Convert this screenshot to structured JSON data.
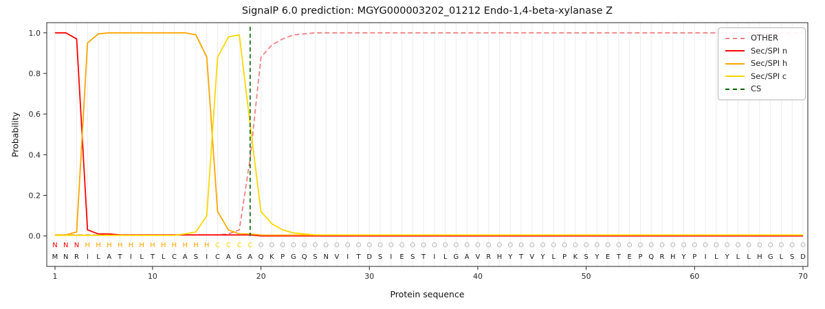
{
  "title": "SignalP 6.0 prediction: MGYG000003202_01212 Endo-1,4-beta-xylanase Z",
  "chart_data": {
    "type": "line",
    "title": "SignalP 6.0 prediction: MGYG000003202_01212 Endo-1,4-beta-xylanase Z",
    "xlabel": "Protein sequence",
    "ylabel": "Probability",
    "x_range": [
      1,
      70
    ],
    "ylim": [
      -0.15,
      1.05
    ],
    "x_ticks": [
      1,
      10,
      20,
      30,
      40,
      50,
      60,
      70
    ],
    "y_ticks": [
      0.0,
      0.2,
      0.4,
      0.6,
      0.8,
      1.0
    ],
    "grid": true,
    "grid_color": "#ececec",
    "axis_color": "#262626",
    "background": "#ffffff",
    "legend_position": "upper right",
    "series": [
      {
        "name": "OTHER",
        "color": "#f08080",
        "style": "dashed",
        "values": [
          0.005,
          0.005,
          0.005,
          0.005,
          0.005,
          0.005,
          0.005,
          0.005,
          0.005,
          0.005,
          0.005,
          0.005,
          0.005,
          0.005,
          0.005,
          0.005,
          0.01,
          0.03,
          0.38,
          0.88,
          0.94,
          0.97,
          0.99,
          0.995,
          1.0,
          1.0,
          1.0,
          1.0,
          1.0,
          1.0,
          1.0,
          1.0,
          1.0,
          1.0,
          1.0,
          1.0,
          1.0,
          1.0,
          1.0,
          1.0,
          1.0,
          1.0,
          1.0,
          1.0,
          1.0,
          1.0,
          1.0,
          1.0,
          1.0,
          1.0,
          1.0,
          1.0,
          1.0,
          1.0,
          1.0,
          1.0,
          1.0,
          1.0,
          1.0,
          1.0,
          1.0,
          1.0,
          1.0,
          1.0,
          1.0,
          1.0,
          1.0,
          1.0,
          1.0,
          1.0
        ]
      },
      {
        "name": "Sec/SPI n",
        "color": "#ff0000",
        "style": "solid",
        "values": [
          1.0,
          1.0,
          0.97,
          0.03,
          0.01,
          0.01,
          0.005,
          0.005,
          0.005,
          0.005,
          0.005,
          0.005,
          0.005,
          0.005,
          0.005,
          0.005,
          0.005,
          0.005,
          0.005,
          0.0,
          0.0,
          0.0,
          0.0,
          0.0,
          0.0,
          0.0,
          0.0,
          0.0,
          0.0,
          0.0,
          0.0,
          0.0,
          0.0,
          0.0,
          0.0,
          0.0,
          0.0,
          0.0,
          0.0,
          0.0,
          0.0,
          0.0,
          0.0,
          0.0,
          0.0,
          0.0,
          0.0,
          0.0,
          0.0,
          0.0,
          0.0,
          0.0,
          0.0,
          0.0,
          0.0,
          0.0,
          0.0,
          0.0,
          0.0,
          0.0,
          0.0,
          0.0,
          0.0,
          0.0,
          0.0,
          0.0,
          0.0,
          0.0,
          0.0,
          0.0
        ]
      },
      {
        "name": "Sec/SPI h",
        "color": "#ffa500",
        "style": "solid",
        "values": [
          0.005,
          0.005,
          0.02,
          0.95,
          0.995,
          1.0,
          1.0,
          1.0,
          1.0,
          1.0,
          1.0,
          1.0,
          1.0,
          0.99,
          0.88,
          0.12,
          0.03,
          0.01,
          0.01,
          0.004,
          0.004,
          0.004,
          0.004,
          0.004,
          0.004,
          0.004,
          0.004,
          0.004,
          0.004,
          0.004,
          0.004,
          0.004,
          0.004,
          0.004,
          0.004,
          0.004,
          0.004,
          0.004,
          0.004,
          0.004,
          0.004,
          0.004,
          0.004,
          0.004,
          0.004,
          0.004,
          0.004,
          0.004,
          0.004,
          0.004,
          0.004,
          0.004,
          0.004,
          0.004,
          0.004,
          0.004,
          0.004,
          0.004,
          0.004,
          0.004,
          0.004,
          0.004,
          0.004,
          0.004,
          0.004,
          0.004,
          0.004,
          0.004,
          0.004,
          0.004
        ]
      },
      {
        "name": "Sec/SPI c",
        "color": "#ffd700",
        "style": "solid",
        "values": [
          0.003,
          0.003,
          0.003,
          0.003,
          0.003,
          0.003,
          0.003,
          0.003,
          0.003,
          0.003,
          0.003,
          0.003,
          0.01,
          0.02,
          0.1,
          0.88,
          0.98,
          0.99,
          0.55,
          0.12,
          0.06,
          0.03,
          0.015,
          0.01,
          0.005,
          0.005,
          0.005,
          0.005,
          0.005,
          0.005,
          0.005,
          0.005,
          0.005,
          0.005,
          0.005,
          0.005,
          0.005,
          0.005,
          0.005,
          0.005,
          0.005,
          0.005,
          0.005,
          0.005,
          0.005,
          0.005,
          0.005,
          0.005,
          0.005,
          0.005,
          0.005,
          0.005,
          0.005,
          0.005,
          0.005,
          0.005,
          0.005,
          0.005,
          0.005,
          0.005,
          0.005,
          0.005,
          0.005,
          0.005,
          0.005,
          0.005,
          0.005,
          0.005,
          0.005,
          0.005
        ]
      }
    ],
    "cs": {
      "name": "CS",
      "position": 19,
      "color": "#006400",
      "style": "dashed-vertical"
    },
    "sequence": "MNRILATILTLCASICAGAQKPGQSNVITDSIESTILGAVRHYTVYLPKSYETEPQRHYPILYLLHGLSD",
    "sequence_color": "#1a1a1a",
    "regions": [
      {
        "label": "N",
        "start": 1,
        "end": 3,
        "color": "#ff0000"
      },
      {
        "label": "H",
        "start": 4,
        "end": 15,
        "color": "#ffa500"
      },
      {
        "label": "C",
        "start": 16,
        "end": 19,
        "color": "#ffd700"
      },
      {
        "label": "O",
        "start": 20,
        "end": 70,
        "color": "#b3b3b3"
      }
    ]
  }
}
